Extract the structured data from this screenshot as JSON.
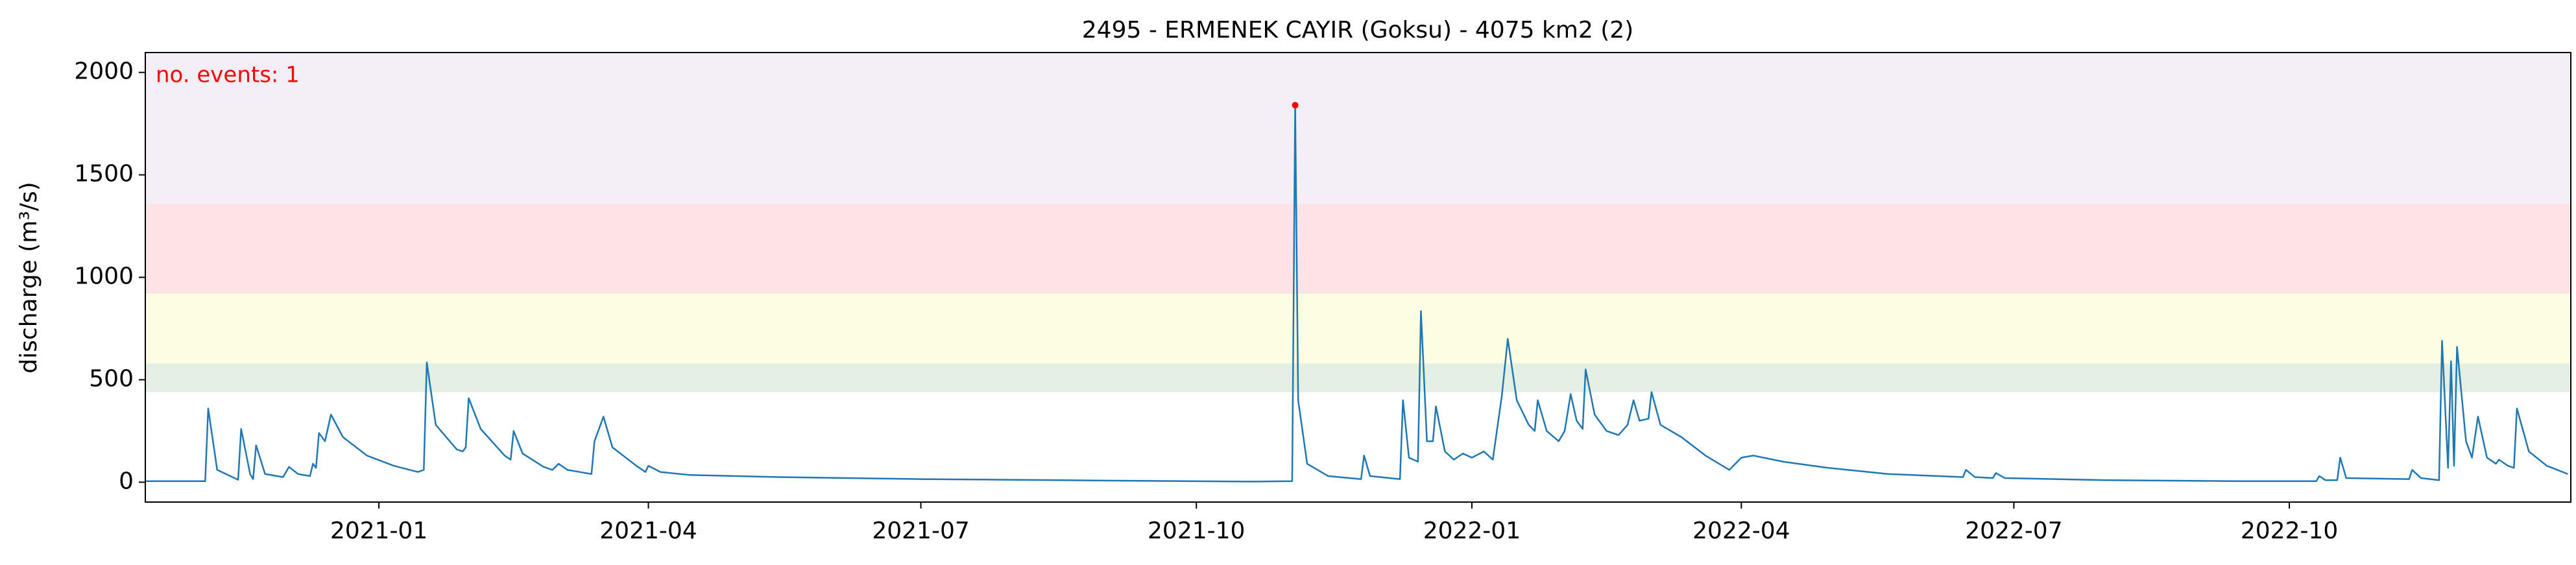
{
  "chart_data": {
    "type": "line",
    "title": "2495 - ERMENEK CAYIR (Goksu) - 4075 km2 (2)",
    "y_label": "discharge (m³/s)",
    "annotation": "no. events: 1",
    "color": "#1f77b4",
    "x": [
      "2020-10-15",
      "2020-11-04",
      "2020-11-05",
      "2020-11-08",
      "2020-11-15",
      "2020-11-16",
      "2020-11-19",
      "2020-11-20",
      "2020-11-21",
      "2020-11-24",
      "2020-11-30",
      "2020-12-02",
      "2020-12-05",
      "2020-12-09",
      "2020-12-10",
      "2020-12-11",
      "2020-12-12",
      "2020-12-14",
      "2020-12-16",
      "2020-12-20",
      "2020-12-28",
      "2021-01-06",
      "2021-01-14",
      "2021-01-16",
      "2021-01-17",
      "2021-01-20",
      "2021-01-27",
      "2021-01-29",
      "2021-01-30",
      "2021-01-31",
      "2021-02-04",
      "2021-02-12",
      "2021-02-14",
      "2021-02-15",
      "2021-02-18",
      "2021-02-25",
      "2021-02-28",
      "2021-03-02",
      "2021-03-05",
      "2021-03-09",
      "2021-03-13",
      "2021-03-14",
      "2021-03-17",
      "2021-03-20",
      "2021-03-28",
      "2021-03-31",
      "2021-04-01",
      "2021-04-05",
      "2021-04-15",
      "2021-05-15",
      "2021-07-01",
      "2021-09-01",
      "2021-10-20",
      "2021-11-02",
      "2021-11-03",
      "2021-11-04",
      "2021-11-07",
      "2021-11-14",
      "2021-11-25",
      "2021-11-26",
      "2021-11-28",
      "2021-12-08",
      "2021-12-09",
      "2021-12-11",
      "2021-12-14",
      "2021-12-15",
      "2021-12-17",
      "2021-12-19",
      "2021-12-20",
      "2021-12-23",
      "2021-12-26",
      "2021-12-29",
      "2022-01-01",
      "2022-01-05",
      "2022-01-08",
      "2022-01-11",
      "2022-01-13",
      "2022-01-16",
      "2022-01-20",
      "2022-01-22",
      "2022-01-23",
      "2022-01-26",
      "2022-01-30",
      "2022-02-01",
      "2022-02-03",
      "2022-02-05",
      "2022-02-07",
      "2022-02-08",
      "2022-02-11",
      "2022-02-15",
      "2022-02-19",
      "2022-02-22",
      "2022-02-24",
      "2022-02-26",
      "2022-03-01",
      "2022-03-02",
      "2022-03-05",
      "2022-03-12",
      "2022-03-20",
      "2022-03-28",
      "2022-04-01",
      "2022-04-05",
      "2022-04-15",
      "2022-04-30",
      "2022-05-20",
      "2022-06-14",
      "2022-06-15",
      "2022-06-18",
      "2022-06-24",
      "2022-06-25",
      "2022-06-28",
      "2022-08-01",
      "2022-09-15",
      "2022-10-10",
      "2022-10-11",
      "2022-10-13",
      "2022-10-17",
      "2022-10-18",
      "2022-10-20",
      "2022-11-10",
      "2022-11-11",
      "2022-11-14",
      "2022-11-20",
      "2022-11-21",
      "2022-11-23",
      "2022-11-24",
      "2022-11-25",
      "2022-11-26",
      "2022-11-29",
      "2022-12-01",
      "2022-12-03",
      "2022-12-06",
      "2022-12-09",
      "2022-12-10",
      "2022-12-13",
      "2022-12-15",
      "2022-12-16",
      "2022-12-20",
      "2022-12-26",
      "2023-01-02"
    ],
    "values": [
      5,
      5,
      360,
      60,
      12,
      260,
      40,
      15,
      180,
      40,
      25,
      75,
      40,
      30,
      90,
      70,
      240,
      200,
      330,
      220,
      130,
      80,
      50,
      60,
      585,
      280,
      160,
      150,
      170,
      410,
      260,
      130,
      110,
      250,
      140,
      75,
      60,
      90,
      60,
      50,
      40,
      200,
      320,
      170,
      80,
      50,
      80,
      50,
      35,
      25,
      15,
      8,
      3,
      5,
      1840,
      400,
      90,
      30,
      15,
      130,
      30,
      15,
      400,
      120,
      100,
      835,
      200,
      200,
      370,
      150,
      110,
      140,
      120,
      150,
      110,
      420,
      700,
      400,
      280,
      250,
      400,
      250,
      200,
      250,
      430,
      300,
      260,
      550,
      330,
      250,
      230,
      280,
      400,
      300,
      310,
      440,
      280,
      220,
      130,
      60,
      120,
      130,
      100,
      70,
      40,
      25,
      60,
      25,
      20,
      45,
      20,
      10,
      5,
      5,
      30,
      10,
      10,
      120,
      20,
      15,
      60,
      20,
      10,
      690,
      70,
      590,
      80,
      660,
      200,
      120,
      320,
      120,
      90,
      110,
      80,
      70,
      360,
      150,
      80,
      40
    ],
    "events": {
      "x": [
        "2021-11-03"
      ],
      "values": [
        1840
      ],
      "color": "#ff0000"
    },
    "thresholds": [
      440,
      580,
      920,
      1360
    ],
    "band_colors": [
      "#e3efe3",
      "#fdfde3",
      "#fde3e3",
      "#f2eef8"
    ],
    "xlim": [
      "2020-10-15",
      "2023-01-03"
    ],
    "ylim": [
      -97,
      2097
    ],
    "xticks": [
      "2021-01",
      "2021-04",
      "2021-07",
      "2021-10",
      "2022-01",
      "2022-04",
      "2022-07",
      "2022-10"
    ],
    "yticks": [
      0,
      500,
      1000,
      1500,
      2000
    ]
  }
}
